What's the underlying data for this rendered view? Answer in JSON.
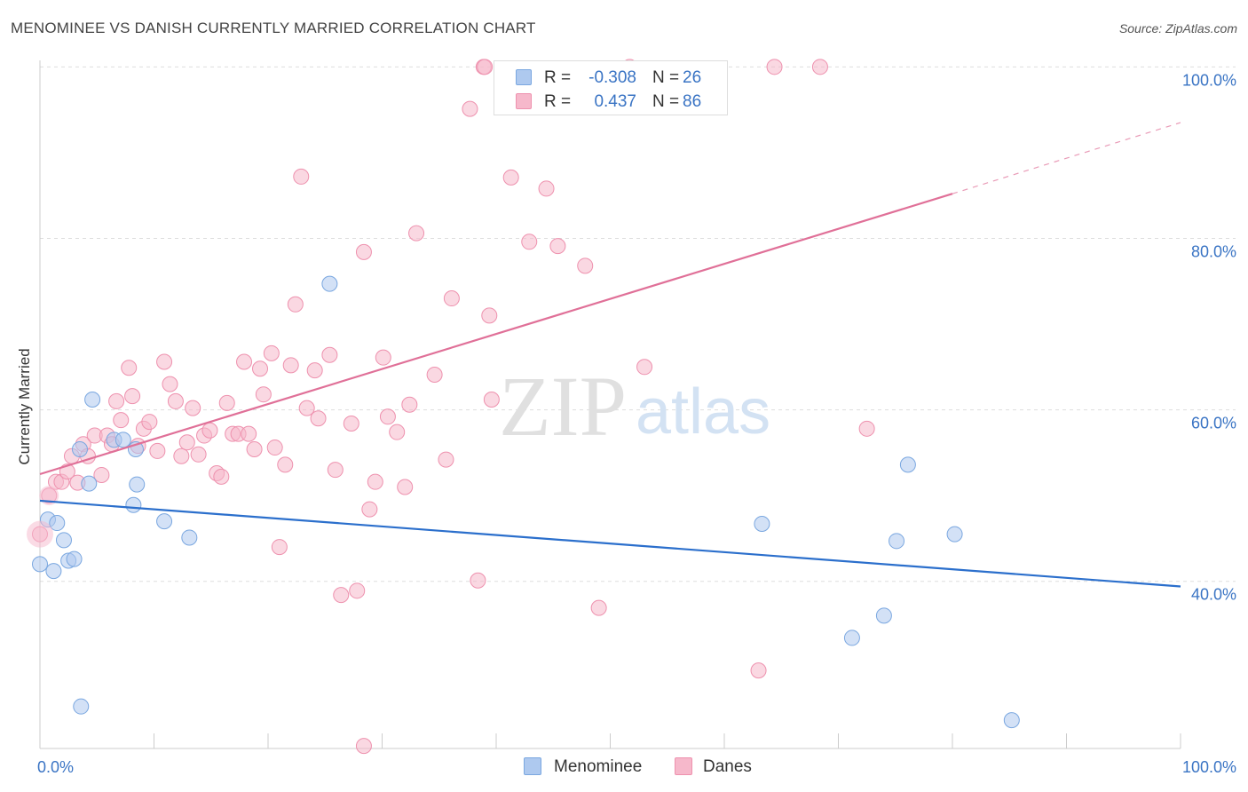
{
  "title": "MENOMINEE VS DANISH CURRENTLY MARRIED CORRELATION CHART",
  "source": "Source: ZipAtlas.com",
  "watermark": {
    "zip": "ZIP",
    "atlas": "atlas"
  },
  "colors": {
    "menominee_fill": "#aec9ef",
    "menominee_stroke": "#7aa7e0",
    "menominee_line": "#2b6fcc",
    "danes_fill": "#f6b8cb",
    "danes_stroke": "#ee91ae",
    "danes_line": "#e07098",
    "axis_label": "#3a74c4",
    "grid": "#dddddd"
  },
  "legend": {
    "rows": [
      {
        "series": "Menominee",
        "r_label": "R =",
        "r_value": "-0.308",
        "n_label": "N =",
        "n_value": "26"
      },
      {
        "series": "Danes",
        "r_label": "R =",
        "r_value": "0.437",
        "n_label": "N =",
        "n_value": "86"
      }
    ],
    "bottom": [
      "Menominee",
      "Danes"
    ]
  },
  "chart_data": {
    "type": "scatter",
    "title": "MENOMINEE VS DANISH CURRENTLY MARRIED CORRELATION CHART",
    "xlabel": "",
    "ylabel": "Currently Married",
    "xlim": [
      0,
      100
    ],
    "ylim": [
      20.5,
      102
    ],
    "x_ticks": [
      0,
      10,
      20,
      30,
      40,
      50,
      60,
      70,
      80,
      90,
      100
    ],
    "x_tick_labels": [
      {
        "value": 0,
        "label": "0.0%"
      },
      {
        "value": 100,
        "label": "100.0%"
      }
    ],
    "y_tick_labels": [
      {
        "value": 100,
        "label": "100.0%"
      },
      {
        "value": 80,
        "label": "80.0%"
      },
      {
        "value": 60,
        "label": "60.0%"
      },
      {
        "value": 40,
        "label": "40.0%"
      }
    ],
    "gridlines": [
      100,
      80,
      60,
      40
    ],
    "series": [
      {
        "name": "Menominee",
        "r": -0.308,
        "n": 26,
        "trend": {
          "x": [
            0,
            100
          ],
          "y": [
            49.4,
            39.4
          ],
          "extrapolated_dash": false
        },
        "points": [
          [
            0,
            42.0
          ],
          [
            0.7,
            47.2
          ],
          [
            1.2,
            41.2
          ],
          [
            1.5,
            46.8
          ],
          [
            2.1,
            44.8
          ],
          [
            2.5,
            42.4
          ],
          [
            3.0,
            42.6
          ],
          [
            3.5,
            55.4
          ],
          [
            4.3,
            51.4
          ],
          [
            4.6,
            61.2
          ],
          [
            3.6,
            25.4
          ],
          [
            6.5,
            56.5
          ],
          [
            7.3,
            56.5
          ],
          [
            8.4,
            55.4
          ],
          [
            8.2,
            48.9
          ],
          [
            8.5,
            51.3
          ],
          [
            10.9,
            47.0
          ],
          [
            13.1,
            45.1
          ],
          [
            25.4,
            74.7
          ],
          [
            63.3,
            46.7
          ],
          [
            71.2,
            33.4
          ],
          [
            74.0,
            36.0
          ],
          [
            75.1,
            44.7
          ],
          [
            76.1,
            53.6
          ],
          [
            80.2,
            45.5
          ],
          [
            85.2,
            23.8
          ]
        ]
      },
      {
        "name": "Danes",
        "r": 0.437,
        "n": 86,
        "trend": {
          "x": [
            0,
            80
          ],
          "y": [
            52.5,
            85.2
          ],
          "dash_x": [
            80,
            100
          ],
          "dash_y": [
            85.2,
            93.5
          ]
        },
        "points": [
          [
            0,
            45.5
          ],
          [
            0.8,
            50.0
          ],
          [
            1.4,
            51.6
          ],
          [
            1.9,
            51.6
          ],
          [
            2.4,
            52.8
          ],
          [
            2.8,
            54.6
          ],
          [
            3.3,
            51.5
          ],
          [
            3.8,
            56.0
          ],
          [
            4.2,
            54.6
          ],
          [
            4.8,
            57.0
          ],
          [
            5.4,
            52.4
          ],
          [
            5.9,
            57.0
          ],
          [
            6.3,
            56.0
          ],
          [
            6.7,
            61.0
          ],
          [
            7.1,
            58.8
          ],
          [
            7.8,
            64.9
          ],
          [
            8.1,
            61.6
          ],
          [
            8.6,
            55.8
          ],
          [
            9.1,
            57.8
          ],
          [
            9.6,
            58.6
          ],
          [
            10.3,
            55.2
          ],
          [
            10.9,
            65.6
          ],
          [
            11.4,
            63.0
          ],
          [
            11.9,
            61.0
          ],
          [
            12.4,
            54.6
          ],
          [
            12.9,
            56.2
          ],
          [
            13.4,
            60.2
          ],
          [
            13.9,
            54.8
          ],
          [
            14.4,
            57.0
          ],
          [
            14.9,
            57.6
          ],
          [
            15.5,
            52.6
          ],
          [
            15.9,
            52.2
          ],
          [
            16.4,
            60.8
          ],
          [
            16.9,
            57.2
          ],
          [
            17.4,
            57.2
          ],
          [
            17.9,
            65.6
          ],
          [
            18.3,
            57.2
          ],
          [
            18.8,
            55.4
          ],
          [
            19.3,
            64.8
          ],
          [
            19.6,
            61.8
          ],
          [
            20.3,
            66.6
          ],
          [
            20.6,
            55.6
          ],
          [
            21.0,
            44.0
          ],
          [
            21.5,
            53.6
          ],
          [
            22.0,
            65.2
          ],
          [
            22.4,
            72.3
          ],
          [
            22.9,
            87.2
          ],
          [
            23.4,
            60.2
          ],
          [
            24.1,
            64.6
          ],
          [
            24.4,
            59.0
          ],
          [
            25.4,
            66.4
          ],
          [
            25.9,
            53.0
          ],
          [
            26.4,
            38.4
          ],
          [
            27.3,
            58.4
          ],
          [
            27.8,
            38.9
          ],
          [
            28.4,
            78.4
          ],
          [
            28.9,
            48.4
          ],
          [
            28.4,
            20.8
          ],
          [
            29.4,
            51.6
          ],
          [
            30.1,
            66.1
          ],
          [
            30.5,
            59.2
          ],
          [
            31.3,
            57.4
          ],
          [
            32.0,
            51.0
          ],
          [
            32.4,
            60.6
          ],
          [
            33.0,
            80.6
          ],
          [
            34.6,
            64.1
          ],
          [
            35.6,
            54.2
          ],
          [
            36.1,
            73.0
          ],
          [
            37.7,
            95.1
          ],
          [
            38.4,
            40.1
          ],
          [
            38.9,
            100.0
          ],
          [
            39.4,
            71.0
          ],
          [
            39.6,
            61.2
          ],
          [
            41.3,
            87.1
          ],
          [
            42.9,
            79.6
          ],
          [
            44.4,
            85.8
          ],
          [
            45.4,
            79.1
          ],
          [
            47.8,
            76.8
          ],
          [
            49.0,
            36.9
          ],
          [
            51.7,
            100.0
          ],
          [
            53.0,
            65.0
          ],
          [
            63.0,
            29.6
          ],
          [
            64.4,
            100.0
          ],
          [
            68.4,
            100.0
          ],
          [
            72.5,
            57.8
          ],
          [
            39.0,
            100.0
          ]
        ]
      }
    ]
  }
}
